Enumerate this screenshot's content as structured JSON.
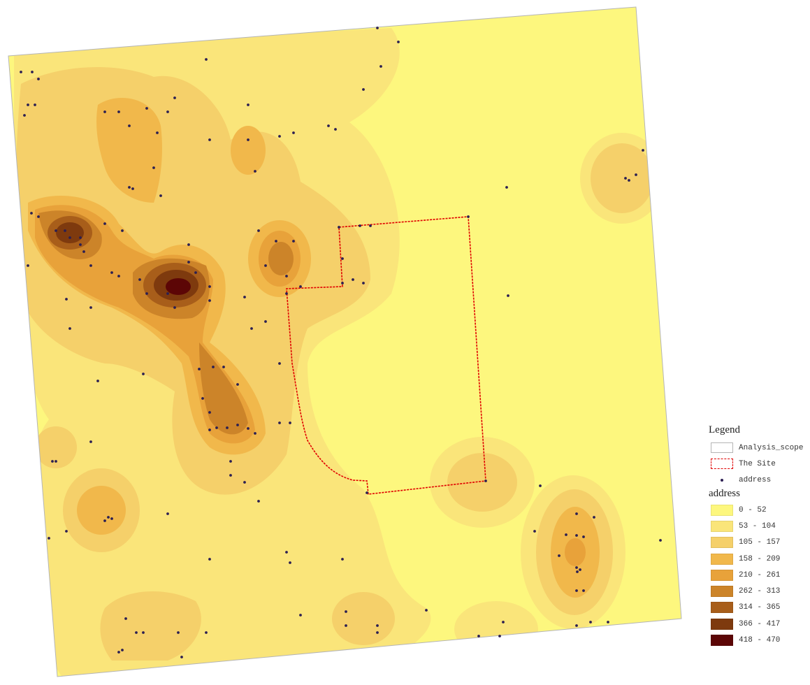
{
  "legend": {
    "title": "Legend",
    "analysis_scope_label": "Analysis_scope",
    "site_label": "The Site",
    "address_point_label": "address",
    "density_title": "address",
    "classes": [
      {
        "label": "0 - 52",
        "color": "#fdf77e"
      },
      {
        "label": "53 - 104",
        "color": "#fae57a"
      },
      {
        "label": "105 - 157",
        "color": "#f5d06a"
      },
      {
        "label": "158 - 209",
        "color": "#f1b84b"
      },
      {
        "label": "210 - 261",
        "color": "#e8a23a"
      },
      {
        "label": "262 - 313",
        "color": "#cc8429"
      },
      {
        "label": "314 - 365",
        "color": "#a85e1a"
      },
      {
        "label": "366 - 417",
        "color": "#7e3a0e"
      },
      {
        "label": "418 - 470",
        "color": "#5c0606"
      }
    ]
  },
  "colors": {
    "site_outline": "#e00000",
    "scope_outline": "#b5b5b5",
    "address_point": "#2c1f52"
  },
  "hotspots": [
    {
      "name": "west-cluster",
      "peak_class": 8
    },
    {
      "name": "central-cluster",
      "peak_class": 8
    },
    {
      "name": "north-central-cluster",
      "peak_class": 6
    },
    {
      "name": "south-spine-cluster",
      "peak_class": 5
    },
    {
      "name": "east-cluster",
      "peak_class": 2
    },
    {
      "name": "southeast-cluster",
      "peak_class": 3
    },
    {
      "name": "southwest-cluster",
      "peak_class": 3
    }
  ]
}
